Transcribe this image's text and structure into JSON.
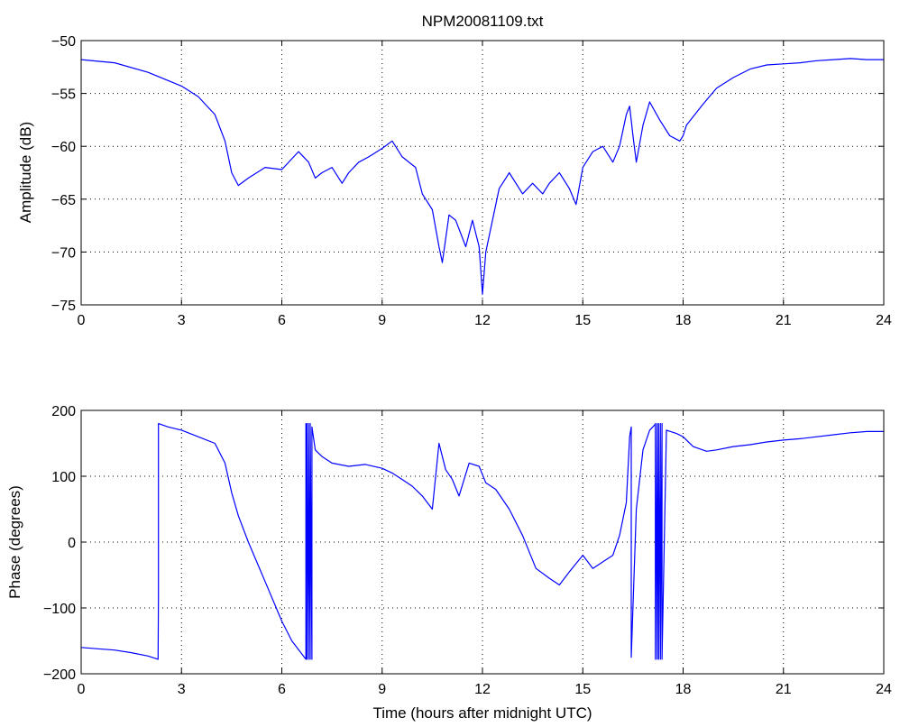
{
  "chart_data": [
    {
      "type": "line",
      "title": "NPM20081109.txt",
      "xlabel": "",
      "ylabel": "Amplitude (dB)",
      "xlim": [
        0,
        24
      ],
      "ylim": [
        -75,
        -50
      ],
      "xticks": [
        "0",
        "3",
        "6",
        "9",
        "12",
        "15",
        "18",
        "21",
        "24"
      ],
      "yticks": [
        "−75",
        "−70",
        "−65",
        "−60",
        "−55",
        "−50"
      ],
      "grid": true,
      "color": "#0000ff",
      "x": [
        0,
        1,
        2,
        3,
        3.5,
        4,
        4.3,
        4.5,
        4.7,
        5,
        5.5,
        6,
        6.5,
        6.8,
        7,
        7.2,
        7.5,
        7.8,
        8,
        8.3,
        8.6,
        9,
        9.3,
        9.6,
        10,
        10.2,
        10.5,
        10.7,
        10.8,
        11,
        11.2,
        11.5,
        11.7,
        11.9,
        12,
        12.1,
        12.3,
        12.5,
        12.7,
        12.8,
        13,
        13.2,
        13.5,
        13.8,
        14,
        14.3,
        14.6,
        14.8,
        15,
        15.3,
        15.6,
        15.9,
        16.1,
        16.3,
        16.4,
        16.5,
        16.6,
        16.8,
        17,
        17.3,
        17.6,
        17.9,
        18,
        18.1,
        18.3,
        18.6,
        19,
        19.5,
        20,
        20.5,
        21,
        21.5,
        22,
        22.5,
        23,
        23.5,
        24
      ],
      "y": [
        -51.8,
        -52.1,
        -53,
        -54.3,
        -55.3,
        -57,
        -59.5,
        -62.5,
        -63.7,
        -63,
        -62,
        -62.2,
        -60.5,
        -61.5,
        -63,
        -62.5,
        -62,
        -63.5,
        -62.5,
        -61.5,
        -61,
        -60.2,
        -59.5,
        -61,
        -62,
        -64.5,
        -66,
        -69.5,
        -71,
        -66.5,
        -67,
        -69.5,
        -67,
        -69.5,
        -74,
        -70,
        -67,
        -64,
        -63,
        -62.5,
        -63.5,
        -64.5,
        -63.5,
        -64.5,
        -63.5,
        -62.5,
        -64,
        -65.5,
        -62,
        -60.5,
        -60,
        -61.5,
        -60,
        -57,
        -56.2,
        -59,
        -61.5,
        -58,
        -55.8,
        -57.5,
        -59,
        -59.5,
        -59,
        -58,
        -57.2,
        -56,
        -54.5,
        -53.5,
        -52.7,
        -52.3,
        -52.2,
        -52.1,
        -51.9,
        -51.8,
        -51.7,
        -51.8,
        -51.8
      ]
    },
    {
      "type": "line",
      "title": "",
      "xlabel": "Time (hours after midnight UTC)",
      "ylabel": "Phase (degrees)",
      "xlim": [
        0,
        24
      ],
      "ylim": [
        -200,
        200
      ],
      "xticks": [
        "0",
        "3",
        "6",
        "9",
        "12",
        "15",
        "18",
        "21",
        "24"
      ],
      "yticks": [
        "−200",
        "−100",
        "0",
        "100",
        "200"
      ],
      "grid": true,
      "color": "#0000ff",
      "x": [
        0,
        0.5,
        1,
        1.5,
        2,
        2.3,
        2.31,
        2.31,
        2.6,
        3,
        3.5,
        4,
        4.3,
        4.5,
        4.7,
        5,
        5.5,
        6,
        6.3,
        6.6,
        6.72,
        6.72,
        6.75,
        6.75,
        6.8,
        6.8,
        6.85,
        6.85,
        6.9,
        6.9,
        7,
        7.2,
        7.5,
        8,
        8.5,
        9,
        9.3,
        9.6,
        9.9,
        10.2,
        10.5,
        10.7,
        10.9,
        11.1,
        11.3,
        11.6,
        11.9,
        12.1,
        12.4,
        12.8,
        13.2,
        13.6,
        14,
        14.3,
        14.6,
        15,
        15.3,
        15.6,
        15.9,
        16.1,
        16.3,
        16.4,
        16.45,
        16.45,
        16.6,
        16.8,
        17,
        17.15,
        17.17,
        17.17,
        17.22,
        17.22,
        17.27,
        17.27,
        17.32,
        17.32,
        17.37,
        17.37,
        17.5,
        17.8,
        18,
        18.3,
        18.7,
        19,
        19.5,
        20,
        20.5,
        21,
        21.5,
        22,
        22.5,
        23,
        23.5,
        24
      ],
      "y": [
        -160,
        -162,
        -164,
        -168,
        -173,
        -178,
        -85,
        180,
        175,
        170,
        160,
        150,
        120,
        75,
        40,
        0,
        -60,
        -120,
        -150,
        -170,
        -178,
        180,
        -178,
        180,
        -178,
        180,
        -178,
        180,
        -178,
        175,
        140,
        130,
        120,
        115,
        118,
        112,
        105,
        95,
        85,
        70,
        50,
        150,
        110,
        95,
        70,
        120,
        115,
        90,
        80,
        50,
        10,
        -40,
        -55,
        -65,
        -45,
        -20,
        -40,
        -30,
        -20,
        10,
        60,
        160,
        175,
        -175,
        50,
        140,
        170,
        178,
        180,
        -178,
        180,
        -178,
        180,
        -178,
        180,
        -178,
        180,
        -178,
        170,
        165,
        160,
        145,
        138,
        140,
        145,
        148,
        152,
        155,
        157,
        160,
        163,
        166,
        168,
        168
      ]
    }
  ]
}
